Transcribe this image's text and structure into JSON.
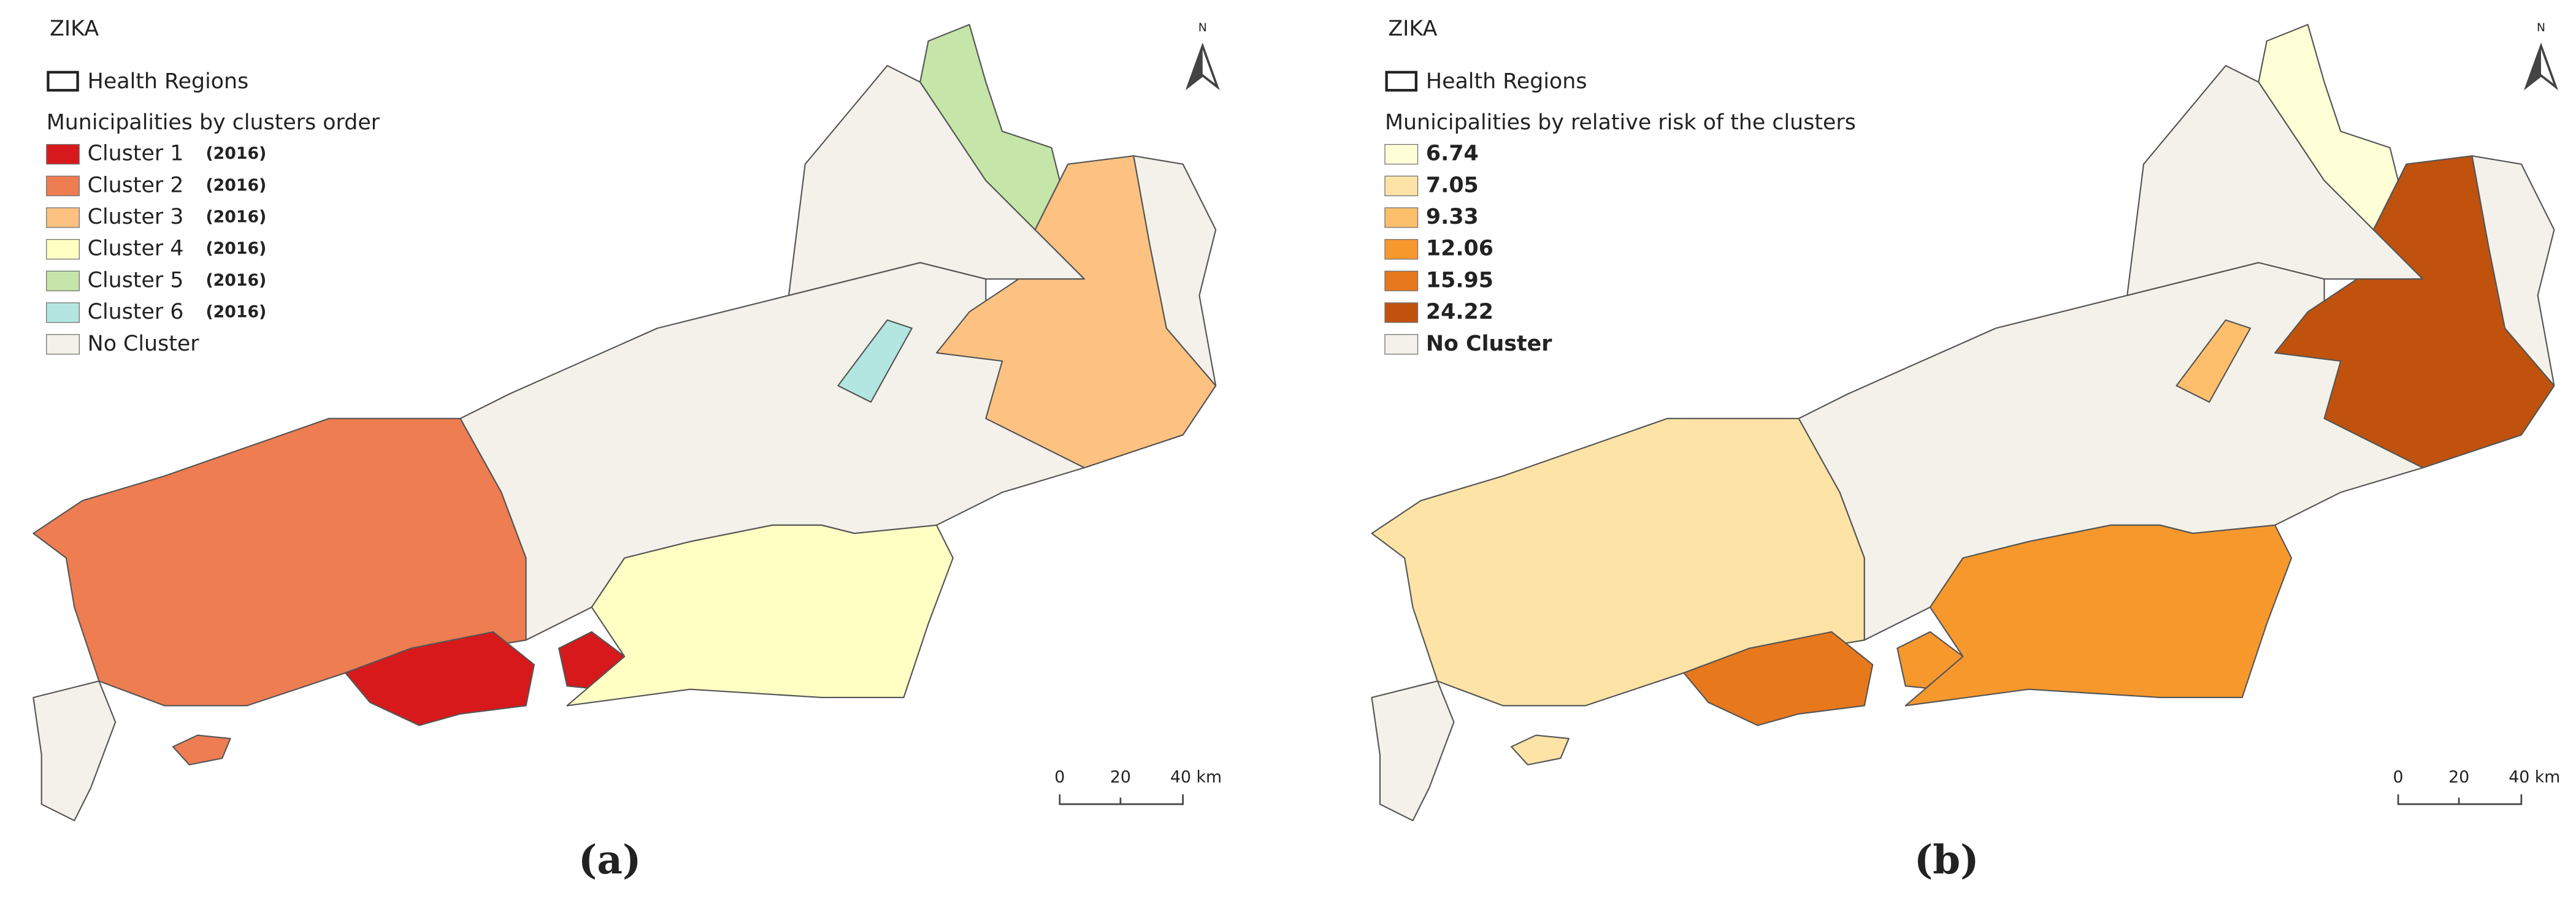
{
  "panels": [
    {
      "title": "ZIKA",
      "legend_header": "Health Regions",
      "legend_title": "Municipalities by clusters order",
      "items": [
        {
          "label": "Cluster 1",
          "year": "(2016)",
          "color": "#d7191c"
        },
        {
          "label": "Cluster 2",
          "year": "(2016)",
          "color": "#ee7d52"
        },
        {
          "label": "Cluster 3",
          "year": "(2016)",
          "color": "#fdc281"
        },
        {
          "label": "Cluster 4",
          "year": "(2016)",
          "color": "#ffffc4"
        },
        {
          "label": "Cluster 5",
          "year": "(2016)",
          "color": "#c6e5a8"
        },
        {
          "label": "Cluster 6",
          "year": "(2016)",
          "color": "#b3e6e0"
        },
        {
          "label": "No Cluster",
          "color": "#f3f1e9"
        }
      ],
      "north": "N",
      "scale": [
        "0",
        "20",
        "40 km"
      ],
      "caption": "(a)"
    },
    {
      "title": "ZIKA",
      "legend_header": "Health Regions",
      "legend_title": "Municipalities by  relative risk of the clusters",
      "items": [
        {
          "label": "6.74",
          "color": "#ffffd7"
        },
        {
          "label": "7.05",
          "color": "#fde3a6"
        },
        {
          "label": "9.33",
          "color": "#fdbf6b"
        },
        {
          "label": "12.06",
          "color": "#f7982d"
        },
        {
          "label": "15.95",
          "color": "#e8781c"
        },
        {
          "label": "24.22",
          "color": "#c0520e"
        },
        {
          "label": "No Cluster",
          "color": "#f3f1e9"
        }
      ],
      "north": "N",
      "scale": [
        "0",
        "20",
        "40 km"
      ],
      "caption": "(b)"
    }
  ]
}
